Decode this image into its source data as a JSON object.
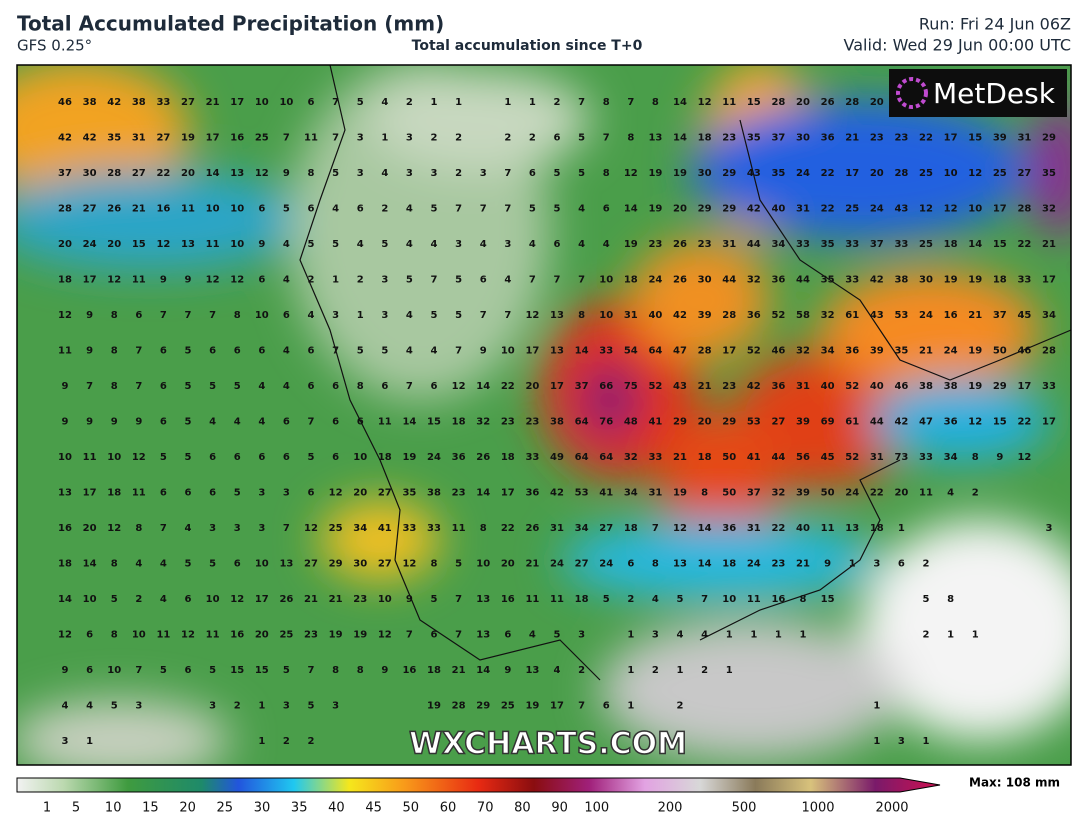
{
  "header": {
    "title": "Total Accumulated Precipitation (mm)",
    "model": "GFS 0.25°",
    "subtitle": "Total accumulation since T+0",
    "run": "Run: Fri 24 Jun 06Z",
    "valid": "Valid: Wed 29 Jun 00:00 UTC"
  },
  "logo": "MetDesk",
  "watermark": "WXCHARTS.COM",
  "legend": {
    "labels": [
      1,
      5,
      10,
      15,
      20,
      25,
      30,
      35,
      40,
      45,
      50,
      60,
      70,
      80,
      90,
      100,
      200,
      500,
      1000,
      2000
    ],
    "max": "Max: 108 mm"
  },
  "grid": [
    [
      46,
      38,
      42,
      38,
      33,
      27,
      21,
      17,
      10,
      10,
      6,
      7,
      5,
      4,
      2,
      1,
      1,
      null,
      1,
      1,
      2,
      7,
      8,
      7,
      8,
      14,
      12,
      11,
      15,
      28,
      20,
      26,
      28,
      20,
      30,
      null,
      null,
      null,
      null,
      null,
      null
    ],
    [
      42,
      42,
      35,
      31,
      27,
      19,
      17,
      16,
      25,
      7,
      11,
      7,
      3,
      1,
      3,
      2,
      2,
      null,
      2,
      2,
      6,
      5,
      7,
      8,
      13,
      14,
      18,
      23,
      35,
      37,
      30,
      36,
      21,
      23,
      23,
      22,
      17,
      15,
      39,
      31,
      29
    ],
    [
      37,
      30,
      28,
      27,
      22,
      20,
      14,
      13,
      12,
      9,
      8,
      5,
      3,
      4,
      3,
      3,
      2,
      3,
      7,
      6,
      5,
      5,
      8,
      12,
      19,
      19,
      30,
      29,
      43,
      35,
      24,
      22,
      17,
      20,
      28,
      25,
      10,
      12,
      25,
      27,
      35
    ],
    [
      28,
      27,
      26,
      21,
      16,
      11,
      10,
      10,
      6,
      5,
      6,
      4,
      6,
      2,
      4,
      5,
      7,
      7,
      7,
      5,
      5,
      4,
      6,
      14,
      19,
      20,
      29,
      29,
      42,
      40,
      31,
      22,
      25,
      24,
      43,
      12,
      12,
      10,
      17,
      28,
      32
    ],
    [
      20,
      24,
      20,
      15,
      12,
      13,
      11,
      10,
      9,
      4,
      5,
      5,
      4,
      5,
      4,
      4,
      3,
      4,
      3,
      4,
      6,
      4,
      4,
      19,
      23,
      26,
      23,
      31,
      44,
      34,
      33,
      35,
      33,
      37,
      33,
      25,
      18,
      14,
      15,
      22,
      21
    ],
    [
      18,
      17,
      12,
      11,
      9,
      9,
      12,
      12,
      6,
      4,
      2,
      1,
      2,
      3,
      5,
      7,
      5,
      6,
      4,
      7,
      7,
      7,
      10,
      18,
      24,
      26,
      30,
      44,
      32,
      36,
      44,
      35,
      33,
      42,
      38,
      30,
      19,
      19,
      18,
      33,
      17
    ],
    [
      12,
      9,
      8,
      6,
      7,
      7,
      7,
      8,
      10,
      6,
      4,
      3,
      1,
      3,
      4,
      5,
      5,
      7,
      7,
      12,
      13,
      8,
      10,
      31,
      40,
      42,
      39,
      28,
      36,
      52,
      58,
      32,
      61,
      43,
      53,
      24,
      16,
      21,
      37,
      45,
      34
    ],
    [
      11,
      9,
      8,
      7,
      6,
      5,
      6,
      6,
      6,
      4,
      6,
      7,
      5,
      5,
      4,
      4,
      7,
      9,
      10,
      17,
      13,
      14,
      33,
      54,
      64,
      47,
      28,
      17,
      52,
      46,
      32,
      34,
      36,
      39,
      35,
      21,
      24,
      19,
      50,
      46,
      28
    ],
    [
      9,
      7,
      8,
      7,
      6,
      5,
      5,
      5,
      4,
      4,
      6,
      6,
      8,
      6,
      7,
      6,
      12,
      14,
      22,
      20,
      17,
      37,
      66,
      75,
      52,
      43,
      21,
      23,
      42,
      36,
      31,
      40,
      52,
      40,
      46,
      38,
      38,
      19,
      29,
      17,
      33
    ],
    [
      9,
      9,
      9,
      9,
      6,
      5,
      4,
      4,
      4,
      6,
      7,
      6,
      6,
      11,
      14,
      15,
      18,
      32,
      23,
      23,
      38,
      64,
      76,
      48,
      41,
      29,
      20,
      29,
      53,
      27,
      39,
      69,
      61,
      44,
      42,
      47,
      36,
      12,
      15,
      22,
      17
    ],
    [
      10,
      11,
      10,
      12,
      5,
      5,
      6,
      6,
      6,
      6,
      5,
      6,
      10,
      18,
      19,
      24,
      36,
      26,
      18,
      33,
      49,
      64,
      64,
      32,
      33,
      21,
      18,
      50,
      41,
      44,
      56,
      45,
      52,
      31,
      73,
      33,
      34,
      8,
      9,
      12,
      null
    ],
    [
      13,
      17,
      18,
      11,
      6,
      6,
      6,
      5,
      3,
      3,
      6,
      12,
      20,
      27,
      35,
      38,
      23,
      14,
      17,
      36,
      42,
      53,
      41,
      34,
      31,
      19,
      8,
      50,
      37,
      32,
      39,
      50,
      24,
      22,
      20,
      11,
      4,
      2,
      null,
      null,
      null
    ],
    [
      16,
      20,
      12,
      8,
      7,
      4,
      3,
      3,
      3,
      7,
      12,
      25,
      34,
      41,
      33,
      33,
      11,
      8,
      22,
      26,
      31,
      34,
      27,
      18,
      7,
      12,
      14,
      36,
      31,
      22,
      40,
      11,
      13,
      18,
      1,
      null,
      null,
      null,
      null,
      null,
      3
    ],
    [
      18,
      14,
      8,
      4,
      4,
      5,
      5,
      6,
      10,
      13,
      27,
      29,
      30,
      27,
      12,
      8,
      5,
      10,
      20,
      21,
      24,
      27,
      24,
      6,
      8,
      13,
      14,
      18,
      24,
      23,
      21,
      9,
      1,
      3,
      6,
      2,
      null,
      null,
      null,
      null,
      null
    ],
    [
      14,
      10,
      5,
      2,
      4,
      6,
      10,
      12,
      17,
      26,
      21,
      21,
      23,
      10,
      9,
      5,
      7,
      13,
      16,
      11,
      11,
      18,
      5,
      2,
      4,
      5,
      7,
      10,
      11,
      16,
      8,
      15,
      null,
      null,
      null,
      5,
      8,
      null,
      null,
      null,
      null
    ],
    [
      12,
      6,
      8,
      10,
      11,
      12,
      11,
      16,
      20,
      25,
      23,
      19,
      19,
      12,
      7,
      6,
      7,
      13,
      6,
      4,
      5,
      3,
      null,
      1,
      3,
      4,
      4,
      1,
      1,
      1,
      1,
      null,
      null,
      null,
      null,
      2,
      1,
      1,
      null,
      null,
      null
    ],
    [
      9,
      6,
      10,
      7,
      5,
      6,
      5,
      15,
      15,
      5,
      7,
      8,
      8,
      9,
      16,
      18,
      21,
      14,
      9,
      13,
      4,
      2,
      null,
      1,
      2,
      1,
      2,
      1,
      null,
      null,
      null,
      null,
      null,
      null,
      null,
      null,
      null,
      null,
      null,
      null,
      null
    ],
    [
      4,
      4,
      5,
      3,
      null,
      null,
      3,
      2,
      1,
      3,
      5,
      3,
      null,
      null,
      null,
      19,
      28,
      29,
      25,
      19,
      17,
      7,
      6,
      1,
      null,
      2,
      null,
      null,
      null,
      null,
      null,
      null,
      null,
      1,
      null,
      null,
      null,
      null,
      null,
      null,
      null
    ],
    [
      3,
      1,
      null,
      null,
      null,
      null,
      null,
      null,
      1,
      2,
      2,
      null,
      null,
      null,
      null,
      null,
      null,
      null,
      null,
      null,
      null,
      null,
      null,
      null,
      null,
      null,
      null,
      null,
      null,
      null,
      null,
      null,
      null,
      1,
      3,
      1,
      null,
      null,
      null,
      null,
      null
    ]
  ]
}
